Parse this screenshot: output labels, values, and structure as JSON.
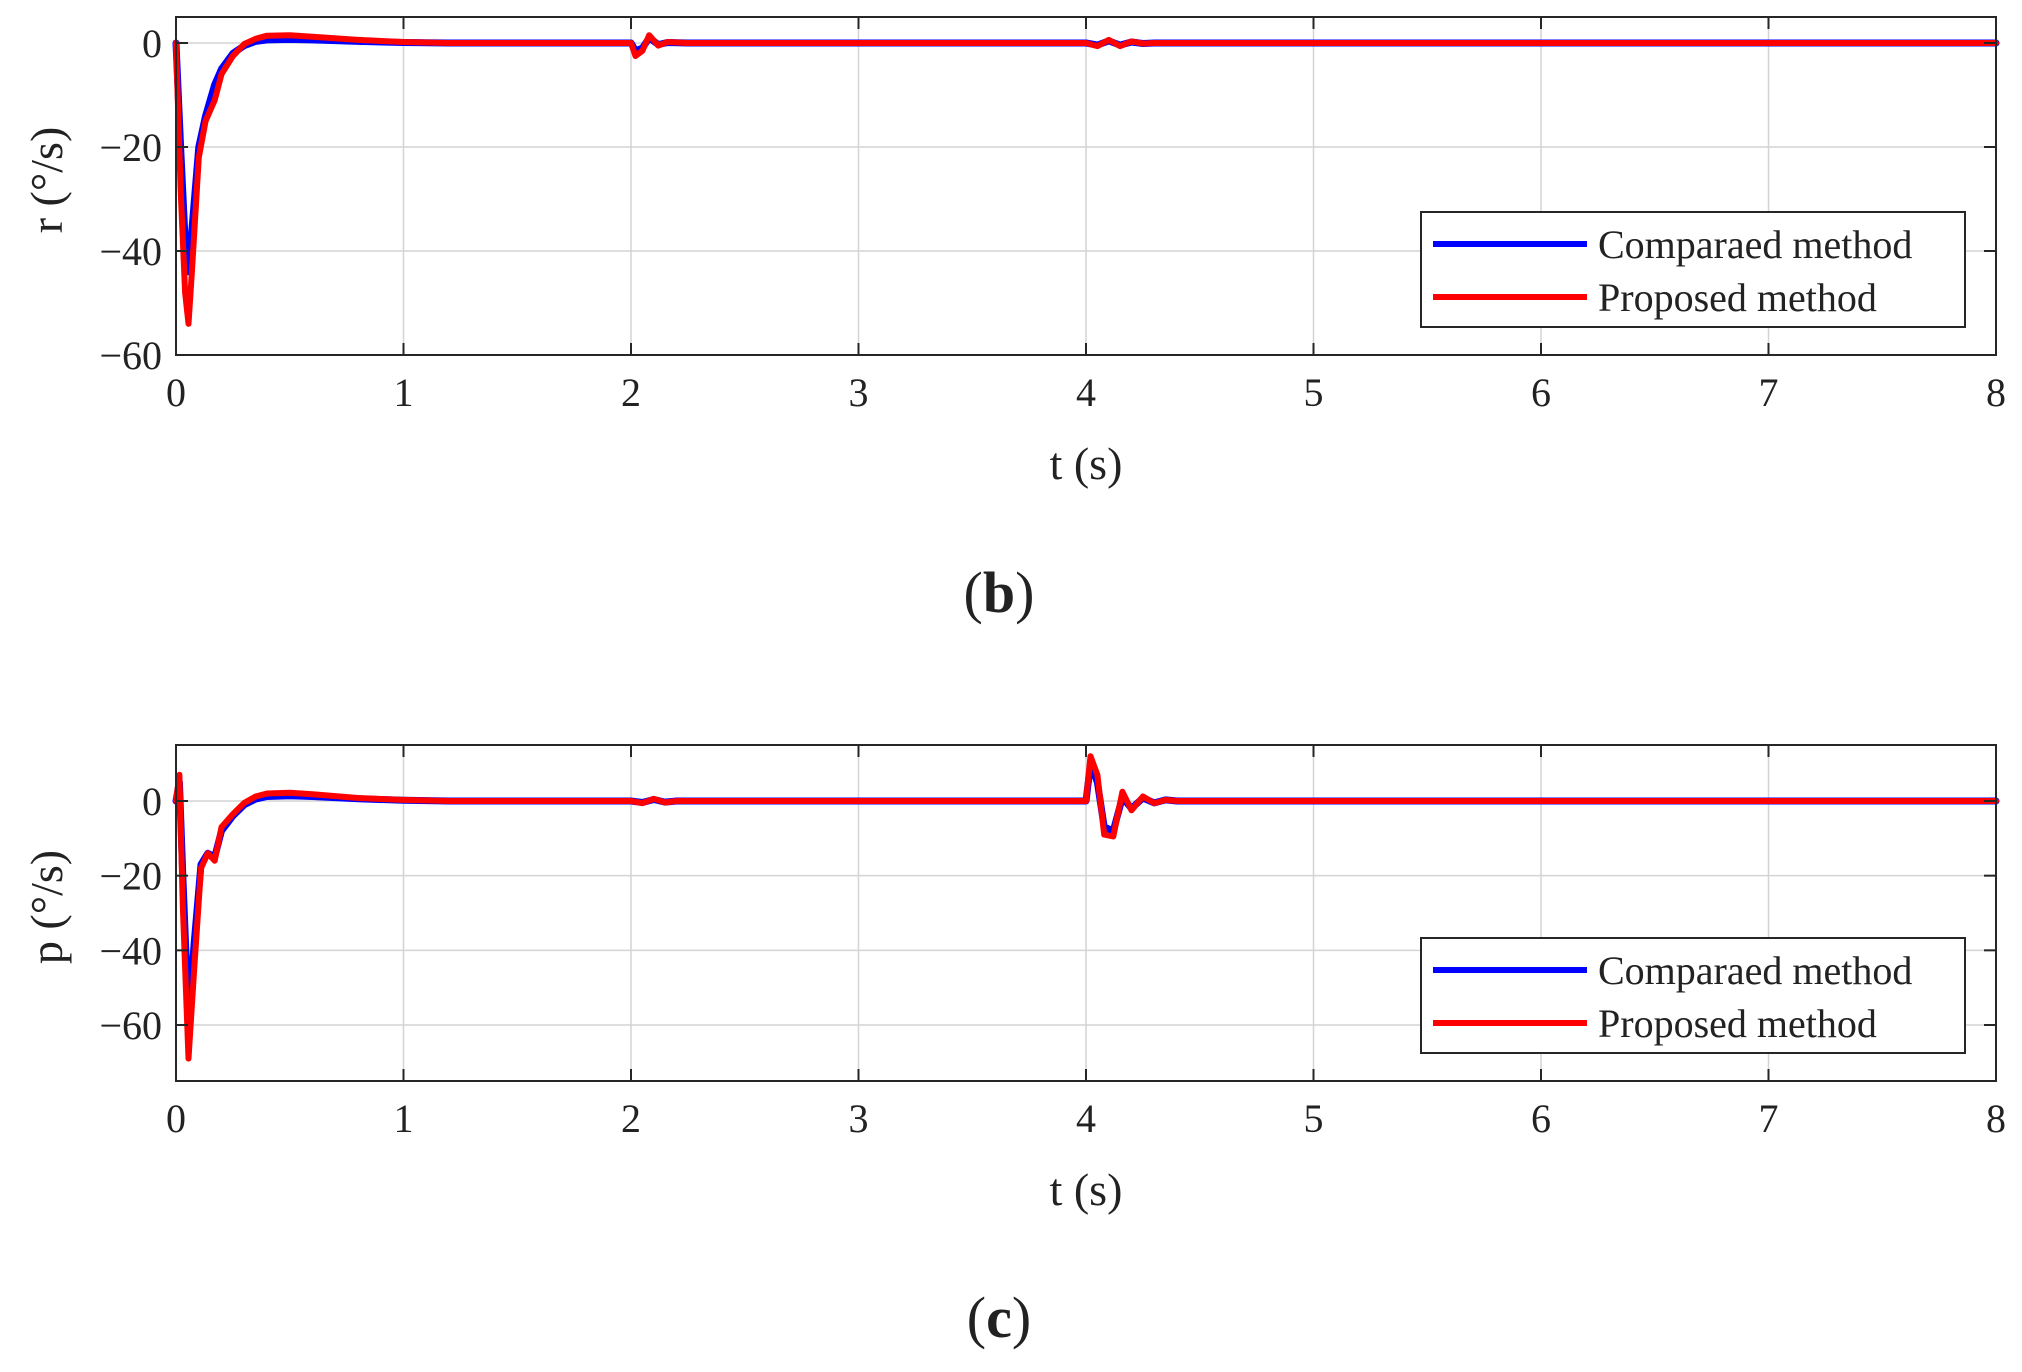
{
  "colors": {
    "compared": "#0000ff",
    "proposed": "#ff0000",
    "grid": "#d4d4d4",
    "axis": "#262626"
  },
  "chart_data": [
    {
      "type": "line",
      "panel_label": "(b)",
      "panel_letter": "b",
      "xlabel": "t (s)",
      "ylabel": "r (°/s)",
      "xlim": [
        0,
        8
      ],
      "ylim": [
        -60,
        5
      ],
      "xticks": [
        0,
        1,
        2,
        3,
        4,
        5,
        6,
        7,
        8
      ],
      "xtick_labels": [
        "0",
        "1",
        "2",
        "3",
        "4",
        "5",
        "6",
        "7",
        "8"
      ],
      "yticks": [
        0,
        -20,
        -40,
        -60
      ],
      "ytick_labels": [
        "0",
        "−20",
        "−40",
        "−60"
      ],
      "grid": true,
      "legend_position": "bottom-right",
      "series": [
        {
          "name": "Comparaed method",
          "color": "#0000ff",
          "x": [
            0,
            0.02,
            0.04,
            0.055,
            0.07,
            0.1,
            0.13,
            0.17,
            0.2,
            0.25,
            0.3,
            0.35,
            0.4,
            0.5,
            0.6,
            0.8,
            1.0,
            1.2,
            1.5,
            2.0,
            2.02,
            2.05,
            2.08,
            2.12,
            2.16,
            2.25,
            3.0,
            4.0,
            4.05,
            4.1,
            4.15,
            4.2,
            4.25,
            4.3,
            4.4,
            5.0,
            6.0,
            7.0,
            8.0
          ],
          "y": [
            0,
            -20,
            -38,
            -44,
            -36,
            -20,
            -14,
            -8,
            -5,
            -2,
            -0.5,
            0.3,
            0.6,
            0.7,
            0.6,
            0.3,
            0.1,
            0,
            0,
            0,
            -1.5,
            -1,
            1,
            -0.3,
            0.1,
            0,
            0,
            0,
            -0.4,
            0.4,
            -0.4,
            0.2,
            -0.1,
            0,
            0,
            0,
            0,
            0,
            0
          ]
        },
        {
          "name": "Proposed method",
          "color": "#ff0000",
          "x": [
            0,
            0.02,
            0.04,
            0.055,
            0.07,
            0.1,
            0.13,
            0.17,
            0.2,
            0.25,
            0.3,
            0.35,
            0.4,
            0.5,
            0.6,
            0.8,
            1.0,
            1.2,
            1.5,
            2.0,
            2.02,
            2.05,
            2.08,
            2.12,
            2.16,
            2.25,
            3.0,
            4.0,
            4.05,
            4.1,
            4.15,
            4.2,
            4.25,
            4.3,
            4.4,
            5.0,
            6.0,
            7.0,
            8.0
          ],
          "y": [
            0,
            -28,
            -48,
            -54,
            -44,
            -22,
            -15,
            -11,
            -6,
            -2.5,
            -0.2,
            0.8,
            1.4,
            1.5,
            1.2,
            0.6,
            0.2,
            0,
            0,
            0,
            -2.5,
            -1.5,
            1.5,
            -0.5,
            0.2,
            0,
            0,
            0,
            -0.6,
            0.6,
            -0.6,
            0.3,
            -0.1,
            0,
            0,
            0,
            0,
            0,
            0
          ]
        }
      ]
    },
    {
      "type": "line",
      "panel_label": "(c)",
      "panel_letter": "c",
      "xlabel": "t (s)",
      "ylabel": "p (°/s)",
      "xlim": [
        0,
        8
      ],
      "ylim": [
        -75,
        15
      ],
      "xticks": [
        0,
        1,
        2,
        3,
        4,
        5,
        6,
        7,
        8
      ],
      "xtick_labels": [
        "0",
        "1",
        "2",
        "3",
        "4",
        "5",
        "6",
        "7",
        "8"
      ],
      "yticks": [
        0,
        -20,
        -40,
        -60
      ],
      "ytick_labels": [
        "0",
        "−20",
        "−40",
        "−60"
      ],
      "grid": true,
      "legend_position": "bottom-right",
      "series": [
        {
          "name": "Comparaed method",
          "color": "#0000ff",
          "x": [
            0,
            0.015,
            0.03,
            0.055,
            0.08,
            0.11,
            0.14,
            0.17,
            0.2,
            0.25,
            0.3,
            0.35,
            0.4,
            0.5,
            0.6,
            0.8,
            1.0,
            1.2,
            1.5,
            2.0,
            2.05,
            2.1,
            2.15,
            2.2,
            3.0,
            4.0,
            4.02,
            4.05,
            4.08,
            4.12,
            4.16,
            4.2,
            4.25,
            4.3,
            4.35,
            4.4,
            4.5,
            5.0,
            6.0,
            7.0,
            8.0
          ],
          "y": [
            0,
            5,
            -20,
            -58,
            -38,
            -17,
            -14,
            -15,
            -8,
            -4,
            -1,
            0.5,
            1.2,
            1.4,
            1.2,
            0.6,
            0.2,
            0,
            0,
            0,
            -0.4,
            0.4,
            -0.3,
            0,
            0,
            0,
            10,
            5,
            -7,
            -8,
            1,
            -2,
            0.8,
            -0.5,
            0.3,
            0,
            0,
            0,
            0,
            0,
            0
          ]
        },
        {
          "name": "Proposed method",
          "color": "#ff0000",
          "x": [
            0,
            0.015,
            0.03,
            0.055,
            0.08,
            0.11,
            0.14,
            0.17,
            0.2,
            0.25,
            0.3,
            0.35,
            0.4,
            0.5,
            0.6,
            0.8,
            1.0,
            1.2,
            1.5,
            2.0,
            2.05,
            2.1,
            2.15,
            2.2,
            3.0,
            4.0,
            4.02,
            4.05,
            4.08,
            4.12,
            4.16,
            4.2,
            4.25,
            4.3,
            4.35,
            4.4,
            4.5,
            5.0,
            6.0,
            7.0,
            8.0
          ],
          "y": [
            0,
            7,
            -28,
            -69,
            -45,
            -18,
            -14,
            -16,
            -7,
            -3.5,
            -0.5,
            1.2,
            2.0,
            2.2,
            1.8,
            0.8,
            0.3,
            0,
            0,
            0,
            -0.6,
            0.6,
            -0.4,
            0,
            0,
            0,
            12,
            7,
            -9,
            -9.5,
            2.5,
            -2.5,
            1.2,
            -0.6,
            0.3,
            0,
            0,
            0,
            0,
            0,
            0
          ]
        }
      ]
    }
  ]
}
